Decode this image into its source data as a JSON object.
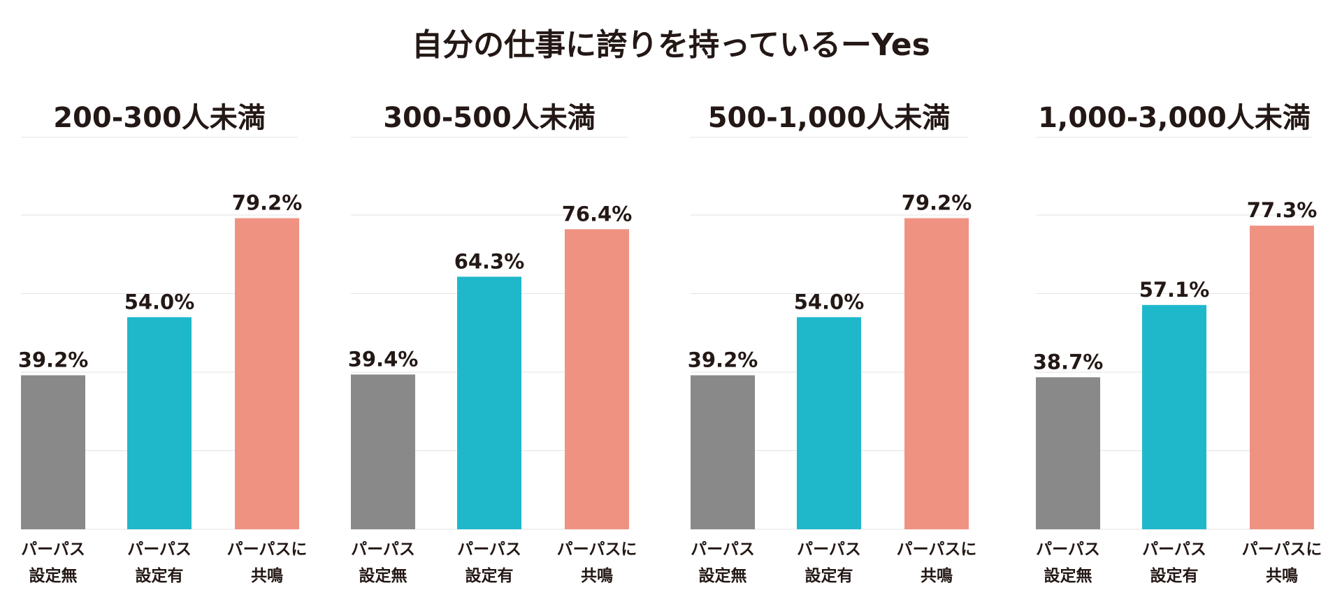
{
  "chart_data": {
    "type": "bar",
    "title": "自分の仕事に誇りを持っているーYes",
    "ylim": [
      0,
      80
    ],
    "ygrid_step": 20,
    "grid": true,
    "categories": [
      [
        "パーパス",
        "設定無"
      ],
      [
        "パーパス",
        "設定有"
      ],
      [
        "パーパスに",
        "共鳴"
      ]
    ],
    "colors": [
      "#898989",
      "#1fb8cb",
      "#f09282"
    ],
    "panels": [
      {
        "title": "200-300人未満",
        "values": [
          39.2,
          54.0,
          79.2
        ],
        "labels": [
          "39.2%",
          "54.0%",
          "79.2%"
        ]
      },
      {
        "title": "300-500人未満",
        "values": [
          39.4,
          64.3,
          76.4
        ],
        "labels": [
          "39.4%",
          "64.3%",
          "76.4%"
        ]
      },
      {
        "title": "500-1,000人未満",
        "values": [
          39.2,
          54.0,
          79.2
        ],
        "labels": [
          "39.2%",
          "54.0%",
          "79.2%"
        ]
      },
      {
        "title": "1,000-3,000人未満",
        "values": [
          38.7,
          57.1,
          77.3
        ],
        "labels": [
          "38.7%",
          "57.1%",
          "77.3%"
        ]
      }
    ]
  }
}
